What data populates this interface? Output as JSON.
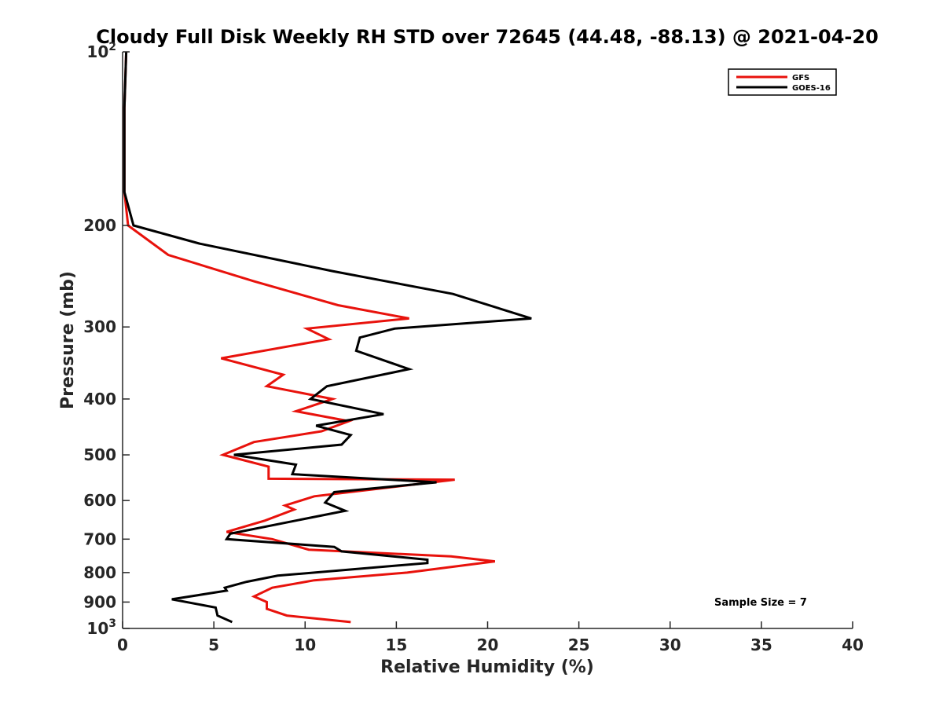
{
  "chart_data": {
    "type": "line",
    "title": "Cloudy Full Disk Weekly RH STD over 72645 (44.48, -88.13) @ 2021-04-20",
    "xlabel": "Relative Humidity (%)",
    "ylabel": "Pressure (mb)",
    "xlim": [
      0,
      40
    ],
    "ylim": [
      100,
      1000
    ],
    "y_scale": "log",
    "y_reversed": true,
    "x_ticks": [
      "0",
      "5",
      "10",
      "15",
      "20",
      "25",
      "30",
      "35",
      "40"
    ],
    "y_ticks": [
      {
        "value": 100,
        "base": "10",
        "exp": "2"
      },
      {
        "value": 200,
        "label": "200"
      },
      {
        "value": 300,
        "label": "300"
      },
      {
        "value": 400,
        "label": "400"
      },
      {
        "value": 500,
        "label": "500"
      },
      {
        "value": 600,
        "label": "600"
      },
      {
        "value": 700,
        "label": "700"
      },
      {
        "value": 800,
        "label": "800"
      },
      {
        "value": 900,
        "label": "900"
      },
      {
        "value": 1000,
        "base": "10",
        "exp": "3"
      }
    ],
    "legend": {
      "position": "top-right"
    },
    "annotation": "Sample Size = 7",
    "series": [
      {
        "name": "GFS",
        "color": "#e8120c",
        "points": [
          [
            0.2,
            100
          ],
          [
            0.1,
            125
          ],
          [
            0.1,
            150
          ],
          [
            0.1,
            175
          ],
          [
            0.3,
            200
          ],
          [
            2.5,
            225
          ],
          [
            7.2,
            250
          ],
          [
            11.8,
            275
          ],
          [
            15.7,
            290
          ],
          [
            10.1,
            302
          ],
          [
            11.3,
            315
          ],
          [
            5.4,
            340
          ],
          [
            8.8,
            363
          ],
          [
            7.9,
            380
          ],
          [
            11.5,
            400
          ],
          [
            9.5,
            420
          ],
          [
            12.4,
            437
          ],
          [
            10.9,
            455
          ],
          [
            7.2,
            475
          ],
          [
            5.5,
            500
          ],
          [
            8.0,
            524
          ],
          [
            8.0,
            550
          ],
          [
            18.2,
            552
          ],
          [
            10.5,
            590
          ],
          [
            8.9,
            612
          ],
          [
            9.4,
            622
          ],
          [
            7.8,
            650
          ],
          [
            5.7,
            680
          ],
          [
            8.2,
            700
          ],
          [
            10.2,
            730
          ],
          [
            18.0,
            750
          ],
          [
            20.4,
            765
          ],
          [
            15.6,
            800
          ],
          [
            10.5,
            825
          ],
          [
            8.2,
            850
          ],
          [
            7.2,
            880
          ],
          [
            7.9,
            900
          ],
          [
            7.9,
            925
          ],
          [
            9.0,
            950
          ],
          [
            12.5,
            975
          ]
        ]
      },
      {
        "name": "GOES-16",
        "color": "#000000",
        "points": [
          [
            0.2,
            100
          ],
          [
            0.1,
            125
          ],
          [
            0.1,
            150
          ],
          [
            0.1,
            175
          ],
          [
            0.6,
            200
          ],
          [
            4.2,
            215
          ],
          [
            11.5,
            240
          ],
          [
            18.1,
            263
          ],
          [
            22.4,
            290
          ],
          [
            14.9,
            302
          ],
          [
            13.0,
            313
          ],
          [
            12.8,
            330
          ],
          [
            15.7,
            355
          ],
          [
            11.2,
            380
          ],
          [
            10.3,
            400
          ],
          [
            14.3,
            425
          ],
          [
            10.6,
            445
          ],
          [
            12.5,
            462
          ],
          [
            12.0,
            480
          ],
          [
            6.1,
            500
          ],
          [
            9.5,
            520
          ],
          [
            9.3,
            540
          ],
          [
            17.2,
            558
          ],
          [
            11.6,
            580
          ],
          [
            11.1,
            605
          ],
          [
            12.2,
            625
          ],
          [
            5.9,
            685
          ],
          [
            5.7,
            700
          ],
          [
            11.6,
            722
          ],
          [
            12.0,
            735
          ],
          [
            16.7,
            760
          ],
          [
            16.7,
            770
          ],
          [
            8.5,
            810
          ],
          [
            6.8,
            830
          ],
          [
            5.6,
            850
          ],
          [
            5.7,
            860
          ],
          [
            2.7,
            890
          ],
          [
            5.1,
            920
          ],
          [
            5.2,
            950
          ],
          [
            6.0,
            975
          ]
        ]
      }
    ]
  }
}
